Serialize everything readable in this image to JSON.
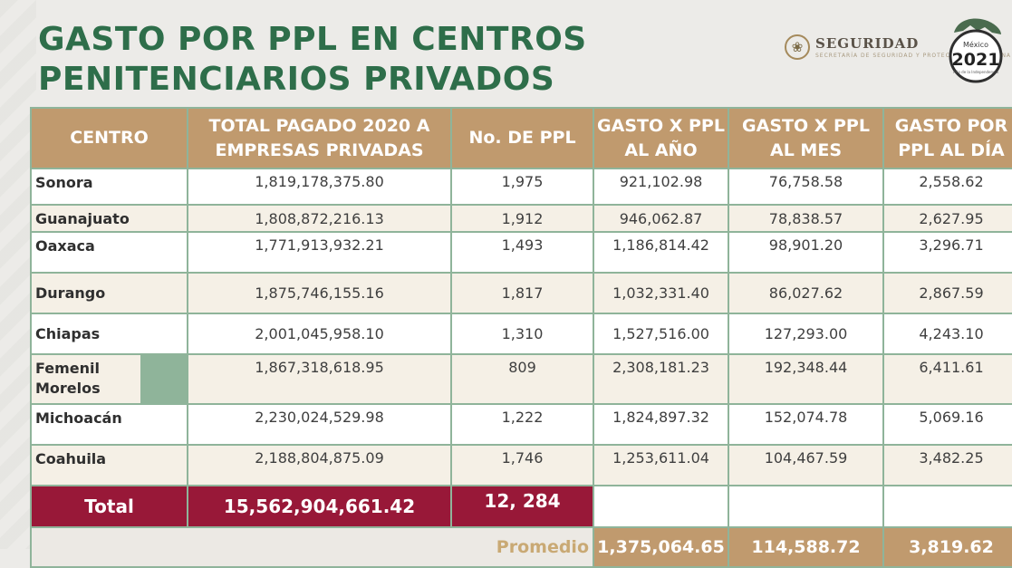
{
  "title": {
    "line1": "GASTO POR PPL EN CENTROS",
    "line2": "PENITENCIARIOS PRIVADOS"
  },
  "logo": {
    "seguridad": "SEGURIDAD",
    "seguridad_sub": "SECRETARÍA DE SEGURIDAD Y PROTECCIÓN CIUDADANA",
    "badge_top": "México",
    "badge_year": "2021",
    "badge_sub": "Año de la Independencia",
    "seal_icon": "eagle-seal-icon"
  },
  "table": {
    "headers": [
      "CENTRO",
      "TOTAL PAGADO 2020 A EMPRESAS PRIVADAS",
      "No. DE PPL",
      "GASTO X PPL AL AÑO",
      "GASTO X PPL AL MES",
      "GASTO POR PPL AL DÍA"
    ],
    "rows": [
      [
        "Sonora",
        "1,819,178,375.80",
        "1,975",
        "921,102.98",
        "76,758.58",
        "2,558.62"
      ],
      [
        "Guanajuato",
        "1,808,872,216.13",
        "1,912",
        "946,062.87",
        "78,838.57",
        "2,627.95"
      ],
      [
        "Oaxaca",
        "1,771,913,932.21",
        "1,493",
        "1,186,814.42",
        "98,901.20",
        "3,296.71"
      ],
      [
        "Durango",
        "1,875,746,155.16",
        "1,817",
        "1,032,331.40",
        "86,027.62",
        "2,867.59"
      ],
      [
        "Chiapas",
        "2,001,045,958.10",
        "1,310",
        "1,527,516.00",
        "127,293.00",
        "4,243.10"
      ],
      [
        "Femenil Morelos",
        "1,867,318,618.95",
        "809",
        "2,308,181.23",
        "192,348.44",
        "6,411.61"
      ],
      [
        "Michoacán",
        "2,230,024,529.98",
        "1,222",
        "1,824,897.32",
        "152,074.78",
        "5,069.16"
      ],
      [
        "Coahuila",
        "2,188,804,875.09",
        "1,746",
        "1,253,611.04",
        "104,467.59",
        "3,482.25"
      ]
    ],
    "total": {
      "label": "Total",
      "amount": "15,562,904,661.42",
      "ppl": "12, 284"
    },
    "promedio": {
      "label": "Promedio",
      "year": "1,375,064.65",
      "month": "114,588.72",
      "day": "3,819.62"
    }
  },
  "colors": {
    "title_green": "#2e6e4a",
    "header_gold": "#c09a6e",
    "total_maroon": "#981838",
    "grid_green": "#8fb49a"
  }
}
